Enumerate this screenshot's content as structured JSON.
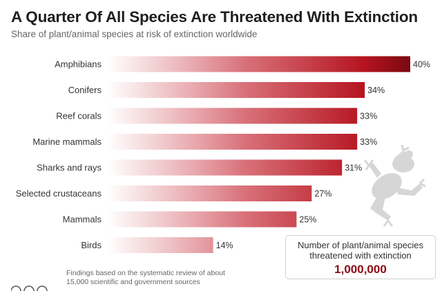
{
  "header": {
    "title": "A Quarter Of All Species Are Threatened With Extinction",
    "subtitle": "Share of plant/animal species at risk of extinction worldwide"
  },
  "chart_data": {
    "type": "bar",
    "orientation": "horizontal",
    "title": "A Quarter Of All Species Are Threatened With Extinction",
    "subtitle": "Share of plant/animal species at risk of extinction worldwide",
    "categories": [
      "Amphibians",
      "Conifers",
      "Reef corals",
      "Marine mammals",
      "Sharks and rays",
      "Selected crustaceans",
      "Mammals",
      "Birds"
    ],
    "values": [
      40,
      34,
      33,
      33,
      31,
      27,
      25,
      14
    ],
    "value_labels": [
      "40%",
      "34%",
      "33%",
      "33%",
      "31%",
      "27%",
      "25%",
      "14%"
    ],
    "unit": "%",
    "xlim": [
      0,
      40
    ],
    "grid": false,
    "colors": {
      "bar_dark": "#8c0a14",
      "bar_light": "#ffffff"
    }
  },
  "footnote": {
    "line1": "Findings based on the systematic review of about",
    "line2": "15,000 scientific and government sources"
  },
  "callout": {
    "line1": "Number of plant/animal species",
    "line2": "threatened with extinction",
    "value": "1,000,000"
  },
  "icons": {
    "decoration": "frog-icon",
    "license": [
      "cc-icon",
      "by-icon",
      "equals-icon"
    ]
  }
}
